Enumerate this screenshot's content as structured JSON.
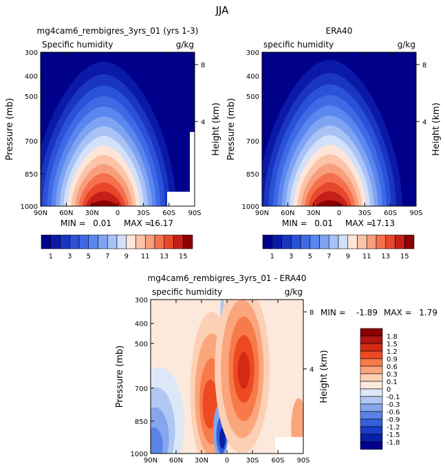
{
  "figure": {
    "title": "JJA"
  },
  "chart_data": [
    {
      "type": "heatmap",
      "title": "mg4cam6_rembigres_3yrs_01 (yrs 1-3)",
      "subtitle": "Specific humidity",
      "units": "g/kg",
      "xlabel": "",
      "ylabel": "Pressure (mb)",
      "y2label": "Height (km)",
      "x_ticks": [
        "90N",
        "60N",
        "30N",
        "0",
        "30S",
        "60S",
        "90S"
      ],
      "y_ticks": [
        "300",
        "400",
        "500",
        "700",
        "850",
        "1000"
      ],
      "y2_ticks": [
        "8",
        "4"
      ],
      "stats": {
        "min_label": "MIN =",
        "min": "0.01",
        "max_label": "MAX =",
        "max": "16.17"
      },
      "colorbar": {
        "orientation": "horizontal",
        "labels": [
          "1",
          "3",
          "5",
          "7",
          "9",
          "11",
          "13",
          "15"
        ]
      }
    },
    {
      "type": "heatmap",
      "title": "ERA40",
      "subtitle": "specific humidity",
      "units": "g/kg",
      "xlabel": "",
      "ylabel": "Pressure (mb)",
      "y2label": "Height (km)",
      "x_ticks": [
        "90N",
        "60N",
        "30N",
        "0",
        "30S",
        "60S",
        "90S"
      ],
      "y_ticks": [
        "300",
        "400",
        "500",
        "700",
        "850",
        "1000"
      ],
      "y2_ticks": [
        "8",
        "4"
      ],
      "stats": {
        "min_label": "MIN =",
        "min": "0.01",
        "max_label": "MAX =",
        "max": "17.13"
      },
      "colorbar": {
        "orientation": "horizontal",
        "labels": [
          "1",
          "3",
          "5",
          "7",
          "9",
          "11",
          "13",
          "15"
        ]
      }
    },
    {
      "type": "heatmap",
      "title": "mg4cam6_rembigres_3yrs_01 - ERA40",
      "subtitle": "specific humidity",
      "units": "g/kg",
      "xlabel": "",
      "ylabel": "Pressure (mb)",
      "y2label": "Height (km)",
      "x_ticks": [
        "90N",
        "60N",
        "30N",
        "0",
        "30S",
        "60S",
        "90S"
      ],
      "y_ticks": [
        "300",
        "400",
        "500",
        "700",
        "850",
        "1000"
      ],
      "y2_ticks": [
        "8",
        "4"
      ],
      "stats": {
        "min_label": "MIN =",
        "min": "-1.89",
        "max_label": "MAX =",
        "max": "1.79"
      },
      "colorbar": {
        "orientation": "vertical",
        "labels": [
          "1.8",
          "1.5",
          "1.2",
          "0.9",
          "0.6",
          "0.3",
          "0.1",
          "0",
          "-0.1",
          "-0.3",
          "-0.6",
          "-0.9",
          "-1.2",
          "-1.5",
          "-1.8"
        ]
      }
    }
  ],
  "colors": {
    "abs_scale": [
      "#00008b",
      "#0a1aa6",
      "#1a35c0",
      "#2a52d8",
      "#3f6ae6",
      "#5a86ef",
      "#7ea3f3",
      "#a8c2f6",
      "#d2e0fa",
      "#fde6d8",
      "#fcc3a8",
      "#f99e7b",
      "#f5714e",
      "#e8472c",
      "#c52018",
      "#8b0000"
    ],
    "diff_scale": [
      "#8b0000",
      "#b01510",
      "#d42a14",
      "#ee4a22",
      "#f77a4a",
      "#fba57c",
      "#fcd0b4",
      "#fde8dc",
      "#dce8f8",
      "#b0c8f2",
      "#85a6ec",
      "#5a82e6",
      "#3560dc",
      "#1a3cc6",
      "#0a1fa8",
      "#00008b"
    ]
  }
}
